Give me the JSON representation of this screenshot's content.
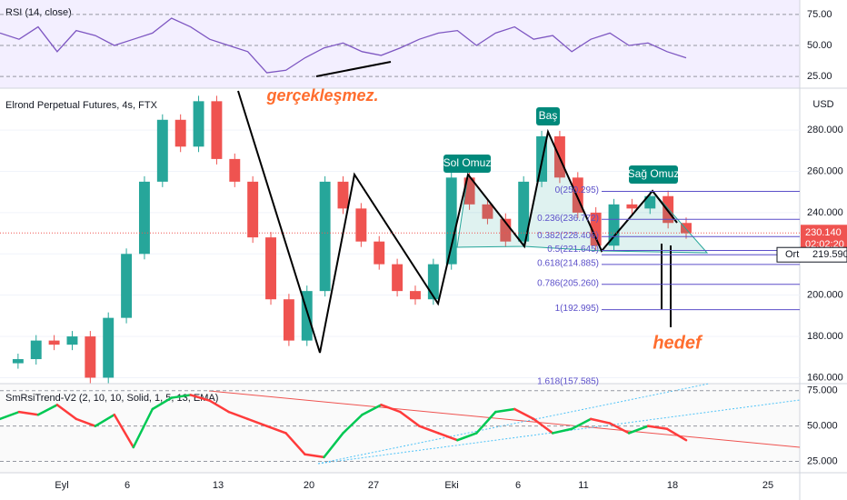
{
  "header": {
    "symbol": "Elrond Perpetual Futures, 4s, FTX",
    "currency": "USD"
  },
  "x_axis": {
    "labels": [
      "Eyl",
      "6",
      "13",
      "20",
      "27",
      "Eki",
      "6",
      "11",
      "18",
      "25"
    ]
  },
  "chart_data": [
    {
      "type": "line",
      "pane": "rsi",
      "title": "RSI (14, close)",
      "color": "#7e57c2",
      "values": [
        60,
        55,
        65,
        45,
        62,
        58,
        50,
        55,
        60,
        72,
        65,
        55,
        50,
        45,
        28,
        30,
        40,
        48,
        52,
        45,
        42,
        48,
        55,
        60,
        62,
        50,
        60,
        65,
        55,
        58,
        45,
        55,
        60,
        50,
        52,
        45,
        40
      ],
      "ylim": [
        17,
        83
      ],
      "yticks": [
        {
          "value": 75,
          "label": "75.00"
        },
        {
          "value": 50,
          "label": "50.00"
        },
        {
          "value": 25,
          "label": "25.00"
        }
      ]
    },
    {
      "type": "candlestick",
      "pane": "price",
      "up_color": "#26a69a",
      "down_color": "#ef5350",
      "values": [
        167,
        169,
        178,
        176,
        180,
        160,
        189,
        220,
        255,
        285,
        272,
        294,
        266,
        255,
        228,
        198,
        178,
        202,
        255,
        242,
        226,
        215,
        202,
        198,
        215,
        257,
        244,
        237,
        226,
        255,
        277,
        257,
        240,
        224,
        244,
        242,
        248,
        235,
        230
      ],
      "ylim": [
        158,
        299
      ],
      "yticks": [
        {
          "value": 160,
          "label": "160.000"
        },
        {
          "value": 180,
          "label": "180.000"
        },
        {
          "value": 200,
          "label": "200.000"
        },
        {
          "value": 220,
          "label": "220.000"
        },
        {
          "value": 240,
          "label": "240.000"
        },
        {
          "value": 260,
          "label": "260.000"
        },
        {
          "value": 280,
          "label": "280.000"
        }
      ],
      "last_price": {
        "value": 230.14,
        "label": "230.140",
        "countdown": "02:02:20"
      },
      "average": {
        "name": "Ort",
        "value": 219.59,
        "label": "219.590"
      },
      "fib": [
        {
          "value": 250.295,
          "label": "0(250.295)"
        },
        {
          "value": 236.772,
          "label": "0.236(236.772)"
        },
        {
          "value": 228.406,
          "label": "0.382(228.406)"
        },
        {
          "value": 221.645,
          "label": "0.5(221.645)"
        },
        {
          "value": 214.885,
          "label": "0.618(214.885)"
        },
        {
          "value": 205.26,
          "label": "0.786(205.260)"
        },
        {
          "value": 192.995,
          "label": "1(192.995)"
        },
        {
          "value": 157.585,
          "label": "1.618(157.585)"
        }
      ],
      "annotations": {
        "forecast": "gerçekleşmez.",
        "target": "hedef",
        "left_shoulder": "Sol Omuz",
        "head": "Baş",
        "right_shoulder": "Sağ Omuz"
      }
    },
    {
      "type": "trendline",
      "pane": "smrsi",
      "title": "SmRsiTrend-V2 (2, 10, 10, Solid, 1, 5, 13, EMA)",
      "up_color": "#00c853",
      "down_color": "#ff3b3b",
      "values": [
        55,
        60,
        58,
        65,
        55,
        50,
        58,
        35,
        62,
        70,
        72,
        68,
        60,
        55,
        50,
        45,
        30,
        28,
        45,
        58,
        65,
        60,
        50,
        45,
        40,
        45,
        60,
        62,
        55,
        45,
        48,
        55,
        52,
        45,
        50,
        48,
        40
      ],
      "ylim": [
        17,
        80
      ],
      "yticks": [
        {
          "value": 75,
          "label": "75.000"
        },
        {
          "value": 50,
          "label": "50.000"
        },
        {
          "value": 25,
          "label": "25.000"
        }
      ]
    }
  ]
}
